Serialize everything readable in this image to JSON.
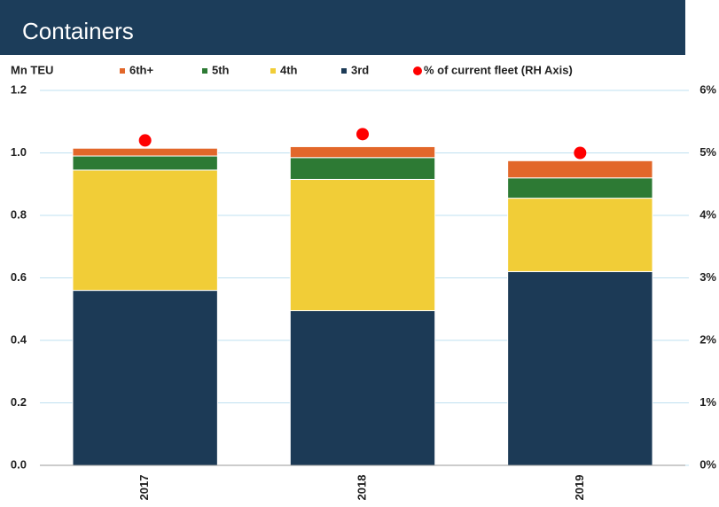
{
  "chart_data": {
    "type": "bar",
    "stacked": true,
    "title": "Containers",
    "y_label": "Mn TEU",
    "categories": [
      "2017",
      "2018",
      "2019"
    ],
    "series": [
      {
        "name": "6th+",
        "color": "#e2672a",
        "values": [
          0.025,
          0.035,
          0.055
        ]
      },
      {
        "name": "5th",
        "color": "#2d7a34",
        "values": [
          0.045,
          0.07,
          0.065
        ]
      },
      {
        "name": "4th",
        "color": "#f1cd37",
        "values": [
          0.385,
          0.42,
          0.235
        ]
      },
      {
        "name": "3rd",
        "color": "#1c3a56",
        "values": [
          0.56,
          0.495,
          0.62
        ]
      },
      {
        "name": "% of current fleet (RH Axis)",
        "type": "scatter",
        "axis": "y2",
        "color": "#ff0000",
        "values": [
          5.2,
          5.3,
          5.0
        ]
      }
    ],
    "ylim": [
      0,
      1.2
    ],
    "yticks": [
      {
        "value": 0,
        "label": "0.0"
      },
      0.2,
      0.4,
      0.6,
      0.8,
      {
        "value": 1,
        "label": "1.0"
      },
      1.2
    ],
    "y2lim": [
      0,
      6
    ],
    "y2ticks": [
      {
        "value": 0,
        "label": "0%"
      },
      {
        "value": 1,
        "label": "1%"
      },
      {
        "value": 2,
        "label": "2%"
      },
      {
        "value": 3,
        "label": "3%"
      },
      {
        "value": 4,
        "label": "4%"
      },
      {
        "value": 5,
        "label": "5%"
      },
      {
        "value": 6,
        "label": "6%"
      }
    ],
    "grid": true
  }
}
